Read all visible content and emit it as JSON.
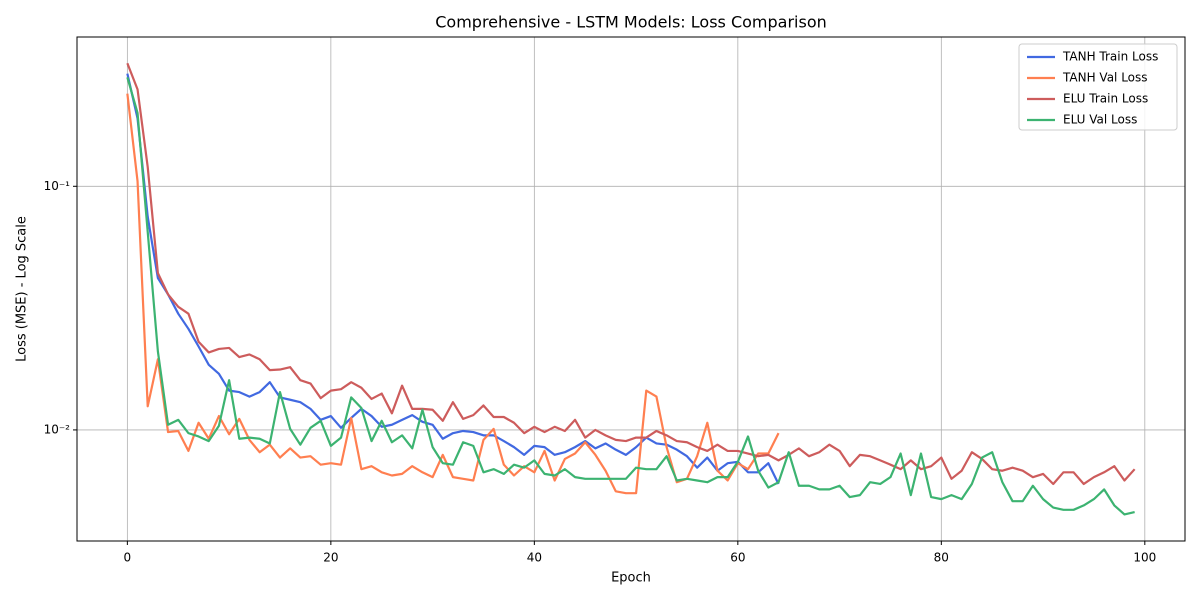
{
  "chart_data": {
    "type": "line",
    "title": "Comprehensive - LSTM Models: Loss Comparison",
    "xlabel": "Epoch",
    "ylabel": "Loss (MSE) - Log Scale",
    "x": [
      0,
      1,
      2,
      3,
      4,
      5,
      6,
      7,
      8,
      9,
      10,
      11,
      12,
      13,
      14,
      15,
      16,
      17,
      18,
      19,
      20,
      21,
      22,
      23,
      24,
      25,
      26,
      27,
      28,
      29,
      30,
      31,
      32,
      33,
      34,
      35,
      36,
      37,
      38,
      39,
      40,
      41,
      42,
      43,
      44,
      45,
      46,
      47,
      48,
      49,
      50,
      51,
      52,
      53,
      54,
      55,
      56,
      57,
      58,
      59,
      60,
      61,
      62,
      63,
      64,
      65,
      66,
      67,
      68,
      69,
      70,
      71,
      72,
      73,
      74,
      75,
      76,
      77,
      78,
      79,
      80,
      81,
      82,
      83,
      84,
      85,
      86,
      87,
      88,
      89,
      90,
      91,
      92,
      93,
      94,
      95,
      96,
      97,
      98,
      99
    ],
    "series": [
      {
        "name": "TANH Train Loss",
        "color": "#4169e1",
        "values": [
          0.29,
          0.19,
          0.075,
          0.042,
          0.036,
          0.03,
          0.026,
          0.022,
          0.0185,
          0.017,
          0.0145,
          0.0143,
          0.0137,
          0.0143,
          0.0157,
          0.0136,
          0.0133,
          0.013,
          0.0122,
          0.011,
          0.0114,
          0.0102,
          0.0112,
          0.0122,
          0.0114,
          0.0103,
          0.0105,
          0.011,
          0.0115,
          0.0108,
          0.0105,
          0.0092,
          0.0097,
          0.0099,
          0.0098,
          0.0095,
          0.0095,
          0.009,
          0.0085,
          0.0079,
          0.0086,
          0.0085,
          0.0079,
          0.0081,
          0.0085,
          0.009,
          0.0084,
          0.0088,
          0.0083,
          0.0079,
          0.0085,
          0.0093,
          0.0088,
          0.0087,
          0.0083,
          0.0078,
          0.007,
          0.0077,
          0.0068,
          0.0073,
          0.0074,
          0.0067,
          0.0067,
          0.0073,
          0.006,
          null,
          null,
          null,
          null,
          null,
          null,
          null,
          null,
          null,
          null,
          null,
          null,
          null,
          null,
          null,
          null,
          null,
          null,
          null,
          null,
          null,
          null,
          null,
          null,
          null,
          null,
          null,
          null,
          null,
          null,
          null,
          null,
          null,
          null,
          null
        ]
      },
      {
        "name": "TANH Val Loss",
        "color": "#ff7f50",
        "values": [
          0.24,
          0.105,
          0.0125,
          0.0195,
          0.0098,
          0.0099,
          0.0082,
          0.0107,
          0.0092,
          0.0114,
          0.0096,
          0.0111,
          0.0091,
          0.0081,
          0.0087,
          0.0077,
          0.0084,
          0.0077,
          0.0078,
          0.0072,
          0.0073,
          0.0072,
          0.0112,
          0.0069,
          0.0071,
          0.0067,
          0.0065,
          0.0066,
          0.0071,
          0.0067,
          0.0064,
          0.0079,
          0.0064,
          0.0063,
          0.0062,
          0.0091,
          0.0101,
          0.0072,
          0.0065,
          0.0071,
          0.0067,
          0.0082,
          0.0062,
          0.0076,
          0.008,
          0.0089,
          0.0079,
          0.0068,
          0.0056,
          0.0055,
          0.0055,
          0.0145,
          0.0137,
          0.0085,
          0.0061,
          0.0063,
          0.0078,
          0.0107,
          0.0068,
          0.0062,
          0.0073,
          0.0069,
          0.008,
          0.008,
          0.0097,
          null,
          null,
          null,
          null,
          null,
          null,
          null,
          null,
          null,
          null,
          null,
          null,
          null,
          null,
          null,
          null,
          null,
          null,
          null,
          null,
          null,
          null,
          null,
          null,
          null,
          null,
          null,
          null,
          null,
          null,
          null,
          null,
          null,
          null,
          null
        ]
      },
      {
        "name": "ELU Train Loss",
        "color": "#cd5c5c",
        "values": [
          0.32,
          0.25,
          0.12,
          0.044,
          0.036,
          0.032,
          0.03,
          0.023,
          0.0208,
          0.0215,
          0.0217,
          0.0199,
          0.0204,
          0.0195,
          0.0176,
          0.0177,
          0.0181,
          0.016,
          0.0155,
          0.0135,
          0.0145,
          0.0147,
          0.0157,
          0.0149,
          0.0134,
          0.0141,
          0.0117,
          0.0152,
          0.0122,
          0.0122,
          0.0121,
          0.0109,
          0.013,
          0.0111,
          0.0115,
          0.0126,
          0.0113,
          0.0113,
          0.0107,
          0.0097,
          0.0103,
          0.0098,
          0.0103,
          0.0099,
          0.011,
          0.0093,
          0.01,
          0.0095,
          0.0091,
          0.009,
          0.0093,
          0.0093,
          0.0099,
          0.0095,
          0.009,
          0.0089,
          0.0085,
          0.0082,
          0.0087,
          0.0082,
          0.0082,
          0.008,
          0.0078,
          0.0079,
          0.0075,
          0.0079,
          0.0084,
          0.0078,
          0.0081,
          0.0087,
          0.0082,
          0.0071,
          0.0079,
          0.0078,
          0.0075,
          0.0072,
          0.0069,
          0.0075,
          0.0069,
          0.0071,
          0.0077,
          0.0063,
          0.0068,
          0.0081,
          0.0076,
          0.0069,
          0.0068,
          0.007,
          0.0068,
          0.0064,
          0.0066,
          0.006,
          0.0067,
          0.0067,
          0.006,
          0.0064,
          0.0067,
          0.0071,
          0.0062,
          0.0069
        ]
      },
      {
        "name": "ELU Val Loss",
        "color": "#3cb371",
        "values": [
          0.28,
          0.2,
          0.065,
          0.021,
          0.0105,
          0.011,
          0.0097,
          0.0094,
          0.009,
          0.0104,
          0.016,
          0.0092,
          0.0093,
          0.0092,
          0.0088,
          0.0143,
          0.0101,
          0.0087,
          0.0102,
          0.0109,
          0.0086,
          0.0093,
          0.0136,
          0.0123,
          0.009,
          0.0109,
          0.0089,
          0.0095,
          0.0084,
          0.0121,
          0.0085,
          0.0073,
          0.0072,
          0.0089,
          0.0086,
          0.0067,
          0.0069,
          0.0066,
          0.0072,
          0.007,
          0.0075,
          0.0066,
          0.0065,
          0.0069,
          0.0064,
          0.0063,
          0.0063,
          0.0063,
          0.0063,
          0.0063,
          0.007,
          0.0069,
          0.0069,
          0.0078,
          0.0062,
          0.0063,
          0.0062,
          0.0061,
          0.0064,
          0.0064,
          0.0074,
          0.0094,
          0.0068,
          0.0058,
          0.0061,
          0.0081,
          0.0059,
          0.0059,
          0.0057,
          0.0057,
          0.0059,
          0.0053,
          0.0054,
          0.0061,
          0.006,
          0.0064,
          0.008,
          0.0054,
          0.008,
          0.0053,
          0.0052,
          0.0054,
          0.0052,
          0.006,
          0.0077,
          0.0081,
          0.0061,
          0.0051,
          0.0051,
          0.0059,
          0.0052,
          0.0048,
          0.0047,
          0.0047,
          0.0049,
          0.0052,
          0.0057,
          0.0049,
          0.0045,
          0.0046
        ]
      }
    ],
    "xlim": [
      -4.95,
      103.95
    ],
    "xticks": [
      0,
      20,
      40,
      60,
      80,
      100
    ],
    "ylim": [
      0.0035,
      0.41
    ],
    "yticks": [
      {
        "value": 0.01,
        "label": "10⁻²"
      },
      {
        "value": 0.1,
        "label": "10⁻¹"
      }
    ],
    "yscale": "log",
    "grid": true,
    "legend": "upper right"
  }
}
